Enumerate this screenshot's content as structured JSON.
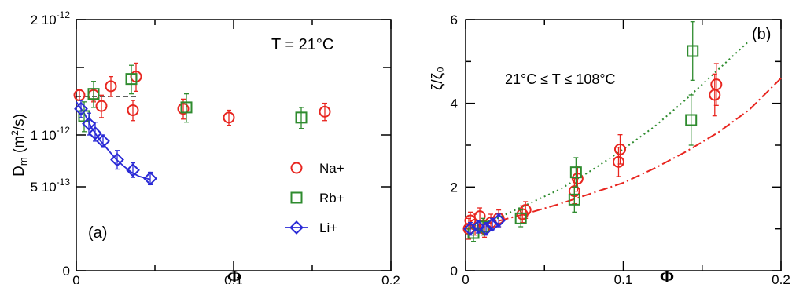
{
  "chart_data": [
    {
      "type": "scatter",
      "panel_label": "(a)",
      "annotation": "T = 21°C",
      "xlabel": "Φ",
      "ylabel": "D_m (m²/s)",
      "xlim": [
        0,
        0.2
      ],
      "y_ticks": [
        {
          "value": 0,
          "label": "0"
        },
        {
          "value": 5e-13,
          "label": "5 10^-13"
        },
        {
          "value": 1e-12,
          "label": "1 10^-12"
        },
        {
          "value": 2e-12,
          "label": "2 10^-12"
        }
      ],
      "x_ticks": [
        {
          "value": 0,
          "label": "0"
        },
        {
          "value": 0.1,
          "label": "0.1"
        },
        {
          "value": 0.2,
          "label": "0.2"
        }
      ],
      "reference_line": {
        "x": [
          0,
          0.04
        ],
        "y": 1.26e-12,
        "style": "dashed"
      },
      "series": [
        {
          "name": "Na+",
          "marker": "circle",
          "color": "#e8251f",
          "points": [
            {
              "x": 0.002,
              "y": 1.27e-12,
              "err": 4e-14
            },
            {
              "x": 0.011,
              "y": 1.27e-12,
              "err": 5e-14
            },
            {
              "x": 0.016,
              "y": 1.19e-12,
              "err": 8e-14
            },
            {
              "x": 0.022,
              "y": 1.34e-12,
              "err": 8e-14
            },
            {
              "x": 0.036,
              "y": 1.16e-12,
              "err": 7e-14
            },
            {
              "x": 0.038,
              "y": 1.42e-12,
              "err": 1.2e-13
            },
            {
              "x": 0.068,
              "y": 1.17e-12,
              "err": 7e-14
            },
            {
              "x": 0.097,
              "y": 1.11e-12,
              "err": 5e-14
            },
            {
              "x": 0.158,
              "y": 1.15e-12,
              "err": 6e-14
            }
          ]
        },
        {
          "name": "Rb+",
          "marker": "square",
          "color": "#2e8b2e",
          "points": [
            {
              "x": 0.005,
              "y": 1.12e-12,
              "err": 1e-13
            },
            {
              "x": 0.011,
              "y": 1.28e-12,
              "err": 1e-13
            },
            {
              "x": 0.035,
              "y": 1.4e-12,
              "err": 1.2e-13
            },
            {
              "x": 0.07,
              "y": 1.18e-12,
              "err": 1e-13
            },
            {
              "x": 0.143,
              "y": 1.11e-12,
              "err": 7e-14
            }
          ]
        },
        {
          "name": "Li+",
          "marker": "diamond",
          "color": "#2a2ad6",
          "points": [
            {
              "x": 0.003,
              "y": 1.17e-12,
              "err": 6e-14
            },
            {
              "x": 0.008,
              "y": 1.07e-12,
              "err": 7e-14
            },
            {
              "x": 0.012,
              "y": 1.01e-12,
              "err": 7e-14
            },
            {
              "x": 0.017,
              "y": 9.4e-13,
              "err": 6e-14
            },
            {
              "x": 0.026,
              "y": 7.6e-13,
              "err": 9e-14
            },
            {
              "x": 0.036,
              "y": 6.6e-13,
              "err": 7e-14
            },
            {
              "x": 0.047,
              "y": 5.8e-13,
              "err": 6e-14
            }
          ],
          "fit_curve": [
            [
              0.0,
              1.22e-12
            ],
            [
              0.005,
              1.14e-12
            ],
            [
              0.01,
              1.04e-12
            ],
            [
              0.015,
              9.5e-13
            ],
            [
              0.02,
              8.6e-13
            ],
            [
              0.025,
              7.7e-13
            ],
            [
              0.03,
              7e-13
            ],
            [
              0.035,
              6.4e-13
            ],
            [
              0.04,
              6e-13
            ],
            [
              0.047,
              5.7e-13
            ]
          ]
        }
      ],
      "legend": [
        {
          "label": "Na+",
          "marker": "circle",
          "color": "#e8251f"
        },
        {
          "label": "Rb+",
          "marker": "square",
          "color": "#2e8b2e"
        },
        {
          "label": "Li+",
          "marker": "diamond",
          "color": "#2a2ad6"
        }
      ]
    },
    {
      "type": "scatter",
      "panel_label": "(b)",
      "annotation": "21°C ≤ T ≤ 108°C",
      "xlabel": "Φ",
      "ylabel": "ζ/ζ₀",
      "xlim": [
        0,
        0.2
      ],
      "ylim": [
        0,
        6
      ],
      "y_ticks": [
        0,
        2,
        4,
        6
      ],
      "x_ticks": [
        {
          "value": 0,
          "label": "0"
        },
        {
          "value": 0.1,
          "label": "0.1"
        },
        {
          "value": 0.2,
          "label": "0.2"
        }
      ],
      "series": [
        {
          "name": "Na+",
          "marker": "circle",
          "color": "#e8251f",
          "points": [
            {
              "x": 0.002,
              "y": 1.0,
              "err": 0.25
            },
            {
              "x": 0.003,
              "y": 1.2,
              "err": 0.2
            },
            {
              "x": 0.006,
              "y": 1.1,
              "err": 0.25
            },
            {
              "x": 0.009,
              "y": 1.3,
              "err": 0.2
            },
            {
              "x": 0.012,
              "y": 1.0,
              "err": 0.2
            },
            {
              "x": 0.016,
              "y": 1.15,
              "err": 0.2
            },
            {
              "x": 0.021,
              "y": 1.25,
              "err": 0.2
            },
            {
              "x": 0.036,
              "y": 1.35,
              "err": 0.2
            },
            {
              "x": 0.038,
              "y": 1.45,
              "err": 0.2
            },
            {
              "x": 0.069,
              "y": 1.9,
              "err": 0.3
            },
            {
              "x": 0.071,
              "y": 2.2,
              "err": 0.3
            },
            {
              "x": 0.097,
              "y": 2.6,
              "err": 0.35
            },
            {
              "x": 0.098,
              "y": 2.9,
              "err": 0.35
            },
            {
              "x": 0.158,
              "y": 4.2,
              "err": 0.5
            },
            {
              "x": 0.159,
              "y": 4.45,
              "err": 0.5
            }
          ]
        },
        {
          "name": "Rb+",
          "marker": "square",
          "color": "#2e8b2e",
          "points": [
            {
              "x": 0.005,
              "y": 0.9,
              "err": 0.2
            },
            {
              "x": 0.011,
              "y": 1.05,
              "err": 0.2
            },
            {
              "x": 0.035,
              "y": 1.25,
              "err": 0.2
            },
            {
              "x": 0.069,
              "y": 1.7,
              "err": 0.3
            },
            {
              "x": 0.07,
              "y": 2.35,
              "err": 0.35
            },
            {
              "x": 0.143,
              "y": 3.6,
              "err": 0.6
            },
            {
              "x": 0.144,
              "y": 5.25,
              "err": 0.7
            }
          ]
        },
        {
          "name": "Li+",
          "marker": "diamond",
          "color": "#2a2ad6",
          "points": [
            {
              "x": 0.003,
              "y": 1.0,
              "err": 0.15
            },
            {
              "x": 0.008,
              "y": 1.05,
              "err": 0.15
            },
            {
              "x": 0.013,
              "y": 1.0,
              "err": 0.15
            },
            {
              "x": 0.017,
              "y": 1.1,
              "err": 0.15
            },
            {
              "x": 0.021,
              "y": 1.2,
              "err": 0.15
            }
          ]
        }
      ],
      "curves": [
        {
          "name": "Rb+ model",
          "style": "dotted",
          "color": "#2e8b2e",
          "points": [
            [
              0.0,
              1.0
            ],
            [
              0.02,
              1.25
            ],
            [
              0.04,
              1.6
            ],
            [
              0.06,
              1.95
            ],
            [
              0.08,
              2.4
            ],
            [
              0.1,
              2.9
            ],
            [
              0.12,
              3.45
            ],
            [
              0.14,
              4.1
            ],
            [
              0.16,
              4.8
            ],
            [
              0.18,
              5.5
            ],
            [
              0.195,
              6.1
            ]
          ]
        },
        {
          "name": "Na+ model",
          "style": "dashdot",
          "color": "#e8251f",
          "points": [
            [
              0.0,
              1.0
            ],
            [
              0.02,
              1.18
            ],
            [
              0.04,
              1.38
            ],
            [
              0.06,
              1.6
            ],
            [
              0.08,
              1.85
            ],
            [
              0.1,
              2.1
            ],
            [
              0.12,
              2.45
            ],
            [
              0.14,
              2.85
            ],
            [
              0.16,
              3.3
            ],
            [
              0.18,
              3.85
            ],
            [
              0.2,
              4.6
            ]
          ]
        }
      ]
    }
  ]
}
